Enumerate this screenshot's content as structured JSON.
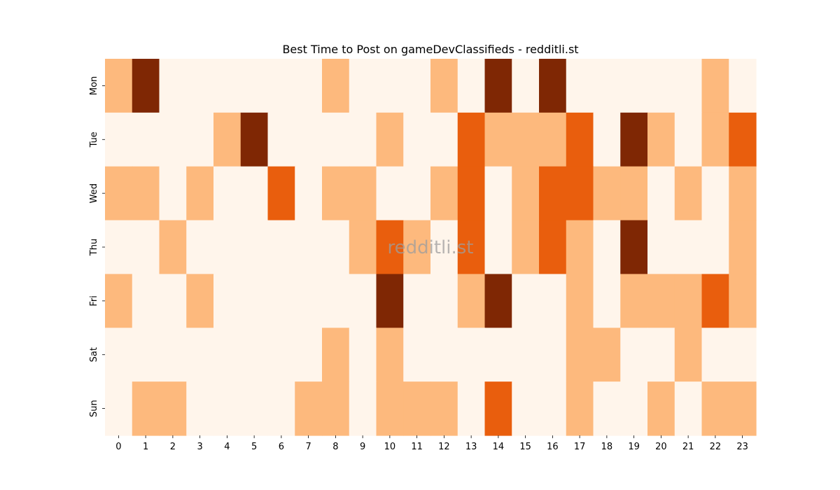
{
  "chart_data": {
    "type": "heatmap",
    "title": "Best Time to Post on gameDevClassifieds - redditli.st",
    "watermark": "redditli.st",
    "xlabel": "",
    "ylabel": "",
    "x": [
      0,
      1,
      2,
      3,
      4,
      5,
      6,
      7,
      8,
      9,
      10,
      11,
      12,
      13,
      14,
      15,
      16,
      17,
      18,
      19,
      20,
      21,
      22,
      23
    ],
    "y": [
      "Mon",
      "Tue",
      "Wed",
      "Thu",
      "Fri",
      "Sat",
      "Sun"
    ],
    "values": [
      [
        1,
        3,
        0,
        0,
        0,
        0,
        0,
        0,
        1,
        0,
        0,
        0,
        1,
        0,
        3,
        0,
        3,
        0,
        0,
        0,
        0,
        0,
        1,
        0
      ],
      [
        0,
        0,
        0,
        0,
        1,
        3,
        0,
        0,
        0,
        0,
        1,
        0,
        0,
        2,
        1,
        1,
        1,
        2,
        0,
        3,
        1,
        0,
        1,
        2
      ],
      [
        1,
        1,
        0,
        1,
        0,
        0,
        2,
        0,
        1,
        1,
        0,
        0,
        1,
        2,
        0,
        1,
        2,
        2,
        1,
        1,
        0,
        1,
        0,
        1
      ],
      [
        0,
        0,
        1,
        0,
        0,
        0,
        0,
        0,
        0,
        1,
        2,
        1,
        0,
        2,
        0,
        1,
        2,
        1,
        0,
        3,
        0,
        0,
        0,
        1
      ],
      [
        1,
        0,
        0,
        1,
        0,
        0,
        0,
        0,
        0,
        0,
        3,
        0,
        0,
        1,
        3,
        0,
        0,
        1,
        0,
        1,
        1,
        1,
        2,
        1
      ],
      [
        0,
        0,
        0,
        0,
        0,
        0,
        0,
        0,
        1,
        0,
        1,
        0,
        0,
        0,
        0,
        0,
        0,
        1,
        1,
        0,
        0,
        1,
        0,
        0
      ],
      [
        0,
        1,
        1,
        0,
        0,
        0,
        0,
        1,
        1,
        0,
        1,
        1,
        1,
        0,
        2,
        0,
        0,
        1,
        0,
        0,
        1,
        0,
        1,
        1
      ]
    ],
    "colorscale": [
      "#fff5eb",
      "#fdb97d",
      "#e95e0d",
      "#7f2704"
    ],
    "grid": false
  }
}
